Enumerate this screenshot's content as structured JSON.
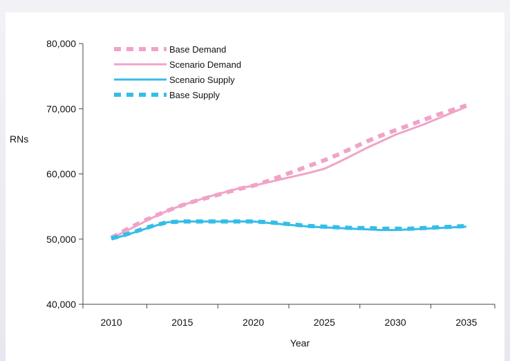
{
  "colors": {
    "demand": "#f0a3c8",
    "supply": "#35bde8",
    "axis": "#444444"
  },
  "chart_data": {
    "type": "line",
    "title": "",
    "xlabel": "Year",
    "ylabel": "RNs",
    "xlim": [
      2008,
      2037
    ],
    "ylim": [
      40000,
      80000
    ],
    "x_ticks": [
      2010,
      2015,
      2020,
      2025,
      2030,
      2035
    ],
    "x_tick_labels": [
      "2010",
      "2015",
      "2020",
      "2025",
      "2030",
      "2035"
    ],
    "y_ticks": [
      40000,
      50000,
      60000,
      70000,
      80000
    ],
    "y_tick_labels": [
      "40,000",
      "50,000",
      "60,000",
      "70,000",
      "80,000"
    ],
    "legend_position": "top-left",
    "x": [
      2010,
      2011,
      2012,
      2013,
      2014,
      2015,
      2016,
      2017,
      2018,
      2019,
      2020,
      2021,
      2022,
      2023,
      2024,
      2025,
      2026,
      2027,
      2028,
      2029,
      2030,
      2031,
      2032,
      2033,
      2034,
      2035
    ],
    "series": [
      {
        "name": "Base Demand",
        "style": "dashed",
        "color": "#f0a3c8",
        "values": [
          50200,
          51400,
          52500,
          53500,
          54400,
          55200,
          55900,
          56500,
          57100,
          57700,
          58200,
          58900,
          59700,
          60500,
          61300,
          62100,
          63000,
          64000,
          65000,
          65900,
          66700,
          67500,
          68300,
          69100,
          69800,
          70500
        ]
      },
      {
        "name": "Scenario Demand",
        "style": "solid",
        "color": "#f0a3c8",
        "values": [
          50100,
          51200,
          52300,
          53400,
          54400,
          55200,
          55900,
          56600,
          57200,
          57800,
          58200,
          58700,
          59200,
          59700,
          60200,
          60800,
          61800,
          62900,
          64000,
          65000,
          66000,
          66800,
          67600,
          68500,
          69400,
          70300
        ]
      },
      {
        "name": "Scenario Supply",
        "style": "solid",
        "color": "#35bde8",
        "values": [
          50000,
          50600,
          51300,
          52000,
          52600,
          52700,
          52700,
          52700,
          52700,
          52700,
          52700,
          52500,
          52300,
          52100,
          51900,
          51800,
          51700,
          51600,
          51500,
          51400,
          51400,
          51500,
          51600,
          51700,
          51800,
          51900
        ]
      },
      {
        "name": "Base Supply",
        "style": "dashed",
        "color": "#35bde8",
        "values": [
          50100,
          50700,
          51400,
          52100,
          52600,
          52700,
          52700,
          52700,
          52700,
          52700,
          52700,
          52600,
          52400,
          52200,
          52000,
          51900,
          51800,
          51700,
          51700,
          51600,
          51600,
          51600,
          51700,
          51800,
          51900,
          52000
        ]
      }
    ]
  }
}
